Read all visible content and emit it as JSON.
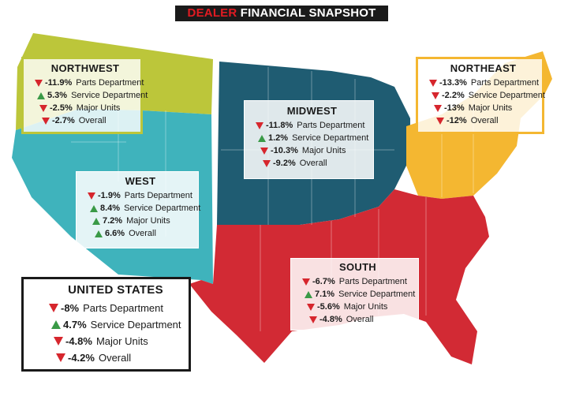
{
  "title": {
    "prefix": "DEALER",
    "rest": " FINANCIAL SNAPSHOT"
  },
  "colors": {
    "northwest": "#bcc63a",
    "west": "#3fb3bc",
    "midwest": "#1f5c72",
    "northeast": "#f4b731",
    "south": "#d22a34",
    "up": "#3a9a47",
    "down": "#d6262d"
  },
  "regions": {
    "northwest": {
      "name": "NORTHWEST",
      "rows": [
        {
          "dir": "down",
          "value": "-11.9%",
          "label": "Parts Department"
        },
        {
          "dir": "up",
          "value": "5.3%",
          "label": "Service Department"
        },
        {
          "dir": "down",
          "value": "-2.5%",
          "label": "Major Units"
        },
        {
          "dir": "down",
          "value": "-2.7%",
          "label": "Overall"
        }
      ]
    },
    "midwest": {
      "name": "MIDWEST",
      "rows": [
        {
          "dir": "down",
          "value": "-11.8%",
          "label": "Parts Department"
        },
        {
          "dir": "up",
          "value": "1.2%",
          "label": "Service Department"
        },
        {
          "dir": "down",
          "value": "-10.3%",
          "label": "Major Units"
        },
        {
          "dir": "down",
          "value": "-9.2%",
          "label": "Overall"
        }
      ]
    },
    "northeast": {
      "name": "NORTHEAST",
      "rows": [
        {
          "dir": "down",
          "value": "-13.3%",
          "label": "Parts Department"
        },
        {
          "dir": "down",
          "value": "-2.2%",
          "label": "Service Department"
        },
        {
          "dir": "down",
          "value": "-13%",
          "label": "Major Units"
        },
        {
          "dir": "down",
          "value": "-12%",
          "label": "Overall"
        }
      ]
    },
    "west": {
      "name": "WEST",
      "rows": [
        {
          "dir": "down",
          "value": "-1.9%",
          "label": "Parts Department"
        },
        {
          "dir": "up",
          "value": "8.4%",
          "label": "Service Department"
        },
        {
          "dir": "up",
          "value": "7.2%",
          "label": "Major Units"
        },
        {
          "dir": "up",
          "value": "6.6%",
          "label": "Overall"
        }
      ]
    },
    "south": {
      "name": "SOUTH",
      "rows": [
        {
          "dir": "down",
          "value": "-6.7%",
          "label": "Parts Department"
        },
        {
          "dir": "up",
          "value": "7.1%",
          "label": "Service Department"
        },
        {
          "dir": "down",
          "value": "-5.6%",
          "label": "Major Units"
        },
        {
          "dir": "down",
          "value": "-4.8%",
          "label": "Overall"
        }
      ]
    },
    "united_states": {
      "name": "UNITED STATES",
      "rows": [
        {
          "dir": "down",
          "value": "-8%",
          "label": "Parts Department"
        },
        {
          "dir": "up",
          "value": "4.7%",
          "label": "Service Department"
        },
        {
          "dir": "down",
          "value": "-4.8%",
          "label": "Major Units"
        },
        {
          "dir": "down",
          "value": "-4.2%",
          "label": "Overall"
        }
      ]
    }
  }
}
